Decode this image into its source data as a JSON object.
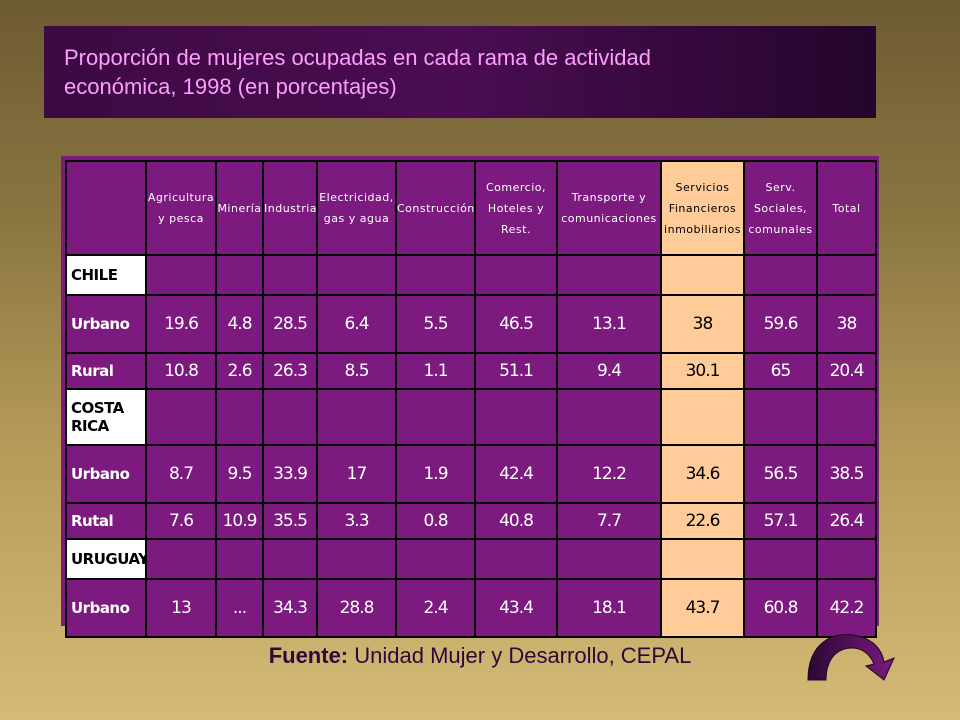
{
  "title": {
    "line1": "Proporción de mujeres ocupadas en cada rama de actividad",
    "line2": "económica, 1998  (en porcentajes)"
  },
  "columns": [
    [
      "Agricultura",
      "y pesca"
    ],
    [
      "Minería"
    ],
    [
      "Industria"
    ],
    [
      "Electricidad,",
      "gas y agua"
    ],
    [
      "Construcción"
    ],
    [
      "Comercio,",
      "Hoteles y",
      "Rest."
    ],
    [
      "Transporte y",
      "comunicaciones"
    ],
    [
      "Servicios",
      "Financieros",
      "inmobiliarios"
    ],
    [
      "Serv.",
      "Sociales,",
      "comunales"
    ],
    [
      "Total"
    ]
  ],
  "countries": [
    {
      "name": "CHILE",
      "rows": [
        {
          "label": "Urbano",
          "values": [
            "19.6",
            "4.8",
            "28.5",
            "6.4",
            "5.5",
            "46.5",
            "13.1",
            "38",
            "59.6",
            "38"
          ]
        },
        {
          "label": "Rural",
          "values": [
            "10.8",
            "2.6",
            "26.3",
            "8.5",
            "1.1",
            "51.1",
            "9.4",
            "30.1",
            "65",
            "20.4"
          ]
        }
      ]
    },
    {
      "name": "COSTA RICA",
      "rows": [
        {
          "label": "Urbano",
          "values": [
            "8.7",
            "9.5",
            "33.9",
            "17",
            "1.9",
            "42.4",
            "12.2",
            "34.6",
            "56.5",
            "38.5"
          ]
        },
        {
          "label": "Rutal",
          "values": [
            "7.6",
            "10.9",
            "35.5",
            "3.3",
            "0.8",
            "40.8",
            "7.7",
            "22.6",
            "57.1",
            "26.4"
          ]
        }
      ]
    },
    {
      "name": "URUGUAY",
      "rows": [
        {
          "label": "Urbano",
          "values": [
            "13",
            "...",
            "34.3",
            "28.8",
            "2.4",
            "43.4",
            "18.1",
            "43.7",
            "60.8",
            "42.2"
          ]
        }
      ]
    }
  ],
  "source": {
    "prefix": "Fuente:",
    "text": " Unidad Mujer y Desarrollo, CEPAL"
  },
  "colors": {
    "table_bg": "#7d1a80",
    "highlight": "#ffcc99",
    "title_text": "#ff9dff"
  },
  "nav_icon": "curved-arrow-next-icon"
}
